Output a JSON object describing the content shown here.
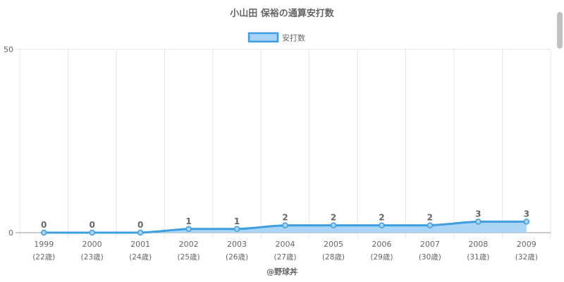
{
  "chart_data": {
    "type": "area",
    "title": "小山田 保裕の通算安打数",
    "legend": [
      "安打数"
    ],
    "legend_position": "top-center",
    "credit": "@野球丼",
    "categories": [
      "1999",
      "2000",
      "2001",
      "2002",
      "2003",
      "2004",
      "2005",
      "2006",
      "2007",
      "2008",
      "2009"
    ],
    "ages": [
      "(22歳)",
      "(23歳)",
      "(24歳)",
      "(25歳)",
      "(26歳)",
      "(27歳)",
      "(28歳)",
      "(29歳)",
      "(30歳)",
      "(31歳)",
      "(32歳)"
    ],
    "series": [
      {
        "name": "安打数",
        "values": [
          0,
          0,
          0,
          1,
          1,
          2,
          2,
          2,
          2,
          3,
          3
        ],
        "labels": [
          "0",
          "0",
          "0",
          "1",
          "1",
          "2",
          "2",
          "2",
          "2",
          "3",
          "3"
        ]
      }
    ],
    "y_ticks": [
      "0",
      "50"
    ],
    "ylim": [
      0,
      50
    ],
    "grid": true,
    "colors": {
      "line": "#3d9ee0",
      "fill": "#a7d3f5",
      "grid": "#e5e5e5",
      "axis": "#999999",
      "text": "#666666"
    }
  }
}
